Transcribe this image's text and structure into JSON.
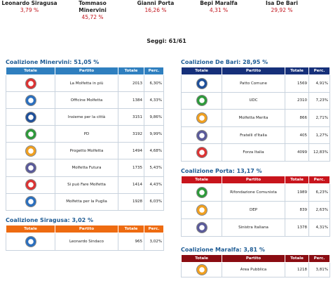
{
  "candidates": [
    {
      "name": "Leonardo Siragusa",
      "percent": "3,79 %"
    },
    {
      "name": "Tommaso Minervini",
      "percent": "45,72 %"
    },
    {
      "name": "Gianni Porta",
      "percent": "16,26 %"
    },
    {
      "name": "Bepi Maralfa",
      "percent": "4,31 %"
    },
    {
      "name": "Isa De Bari",
      "percent": "29,92 %"
    }
  ],
  "seats": "Seggi: 61/61",
  "coalitions": [
    {
      "title": "Coalizione Minervini: 51,05 %",
      "columns": [
        "Totale",
        "Partito",
        "Totale",
        "Perc."
      ],
      "rows": [
        {
          "party": "La Molfetta in più",
          "votes": 2013,
          "percent": "6,30%"
        },
        {
          "party": "Officine Molfetta",
          "votes": 1384,
          "percent": "4,33%"
        },
        {
          "party": "Insieme per la città",
          "votes": 3151,
          "percent": "9,86%"
        },
        {
          "party": "PD",
          "votes": 3192,
          "percent": "9,99%"
        },
        {
          "party": "Progetto Molfetta",
          "votes": 1494,
          "percent": "4,68%"
        },
        {
          "party": "Molfetta Futura",
          "votes": 1735,
          "percent": "5,43%"
        },
        {
          "party": "Si può Fare Molfetta",
          "votes": 1414,
          "percent": "4,43%"
        },
        {
          "party": "Molfetta per la Puglia",
          "votes": 1928,
          "percent": "6,03%"
        }
      ]
    },
    {
      "title": "Coalizione Siragusa: 3,02 %",
      "columns": [
        "Totale",
        "Partito",
        "Totale",
        "Perc."
      ],
      "rows": [
        {
          "party": "Leonardo Sindaco",
          "votes": 965,
          "percent": "3,02%"
        }
      ]
    },
    {
      "title": "Coalizione De Bari: 28,95 %",
      "columns": [
        "Totale",
        "Partito",
        "Totale",
        "Perc."
      ],
      "rows": [
        {
          "party": "Patto Comune",
          "votes": 1569,
          "percent": "4,91%"
        },
        {
          "party": "UDC",
          "votes": 2310,
          "percent": "7,23%"
        },
        {
          "party": "Molfetta Merita",
          "votes": 866,
          "percent": "2,71%"
        },
        {
          "party": "Fratelli d'Italia",
          "votes": 405,
          "percent": "1,27%"
        },
        {
          "party": "Forza Italia",
          "votes": 4099,
          "percent": "12,83%"
        }
      ]
    },
    {
      "title": "Coalizione Porta: 13,17 %",
      "columns": [
        "Totale",
        "Partito",
        "Totale",
        "Perc."
      ],
      "rows": [
        {
          "party": "Rifondazione Comunista",
          "votes": 1989,
          "percent": "6,23%"
        },
        {
          "party": "DEP",
          "votes": 839,
          "percent": "2,63%"
        },
        {
          "party": "Sinistra Italiana",
          "votes": 1378,
          "percent": "4,31%"
        }
      ]
    },
    {
      "title": "Coalizione Maralfa: 3,81 %",
      "columns": [
        "Totale",
        "Partito",
        "Totale",
        "Perc."
      ],
      "rows": [
        {
          "party": "Area Pubblica",
          "votes": 1218,
          "percent": "3,81%"
        }
      ]
    }
  ]
}
